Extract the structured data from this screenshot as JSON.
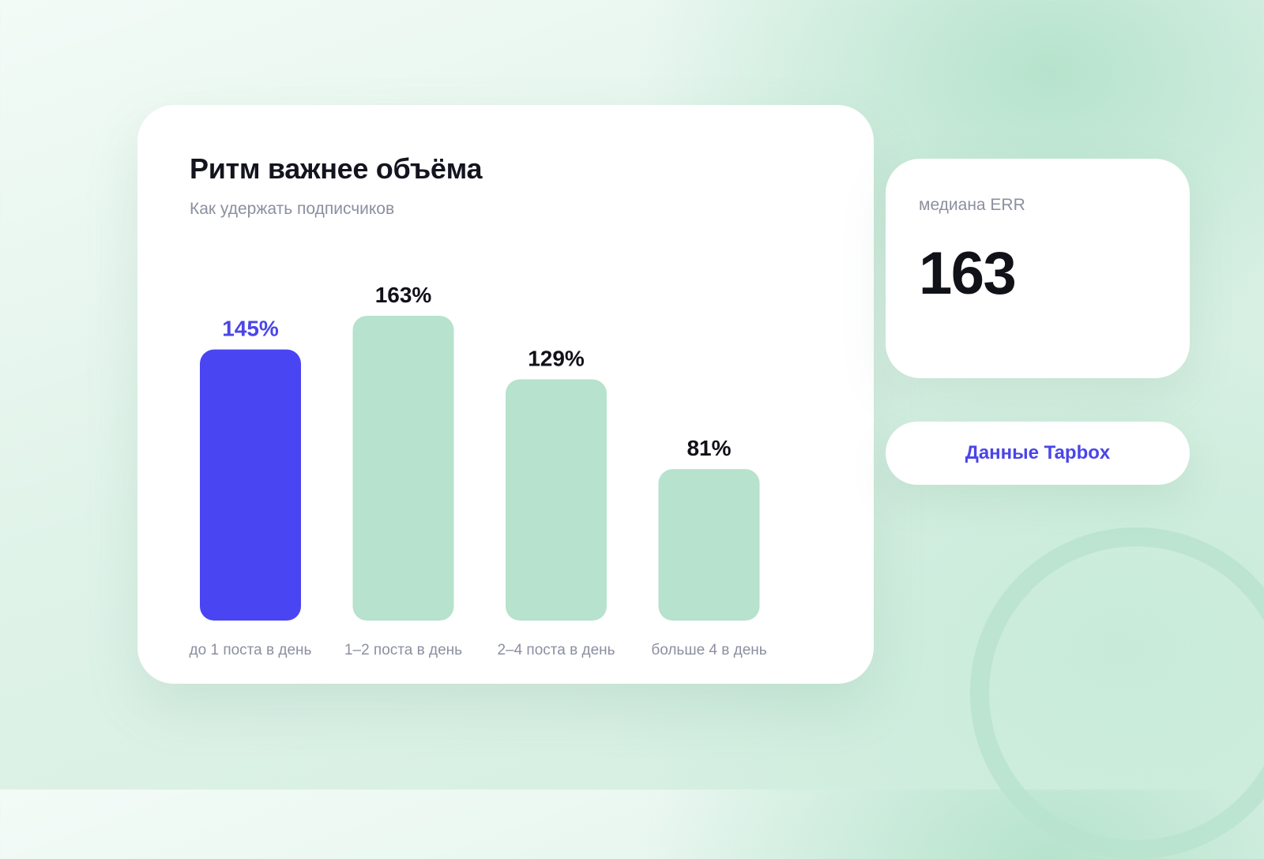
{
  "card": {
    "title": "Ритм важнее объёма",
    "subtitle": "Как удержать подписчиков"
  },
  "chart_data": {
    "type": "bar",
    "title": "Ритм важнее объёма",
    "subtitle": "Как удержать подписчиков",
    "categories": [
      "до 1 поста в день",
      "1–2 поста в день",
      "2–4 поста в день",
      "больше 4 в день"
    ],
    "values": [
      145,
      163,
      129,
      81
    ],
    "value_labels": [
      "145%",
      "163%",
      "129%",
      "81%"
    ],
    "unit": "%",
    "highlight_index": 0,
    "colors": {
      "highlight": "#4a45f2",
      "bar": "#b7e2cd",
      "highlight_label": "#4a45e8",
      "label": "#111118",
      "category_label": "#8c8fa0"
    },
    "ylim": [
      0,
      163
    ],
    "grid": false,
    "legend": "none"
  },
  "metric": {
    "label": "медиана ERR",
    "value": "163"
  },
  "source": {
    "label": "Данные Tapbox"
  },
  "colors": {
    "accent": "#4a45f2",
    "mint": "#b7e2cd"
  }
}
